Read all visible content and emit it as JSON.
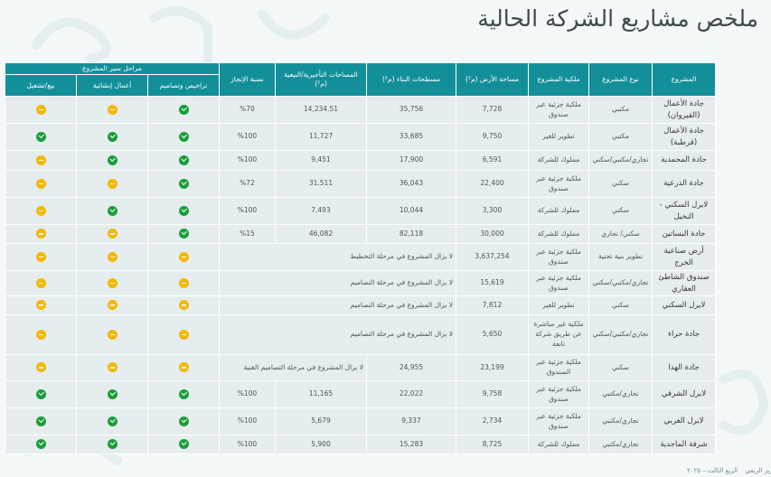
{
  "title": "ملخص مشاريع الشركة الحالية",
  "colors": {
    "header": "#138f9a",
    "cell": "#e6edef",
    "done": "#1a9e3a",
    "pending": "#f5b800"
  },
  "icons": {
    "done": "check-circle-icon",
    "pending": "minus-circle-icon"
  },
  "table": {
    "headers": {
      "project": "المشروع",
      "type": "نوع المشروع",
      "ownership": "ملكية المشروع",
      "land_area": "مساحة الأرض (م²)",
      "built_area": "مسطحات البناء (م²)",
      "leasable_area": "المساحات التأجيرية/البيعية (م²)",
      "completion": "نسبة الإنجاز",
      "stages_group": "مراحل سير المشروع",
      "stage_licensing": "تراخيص وتصاميم",
      "stage_construction": "أعمال إنشائية",
      "stage_sale": "بيع/تشغيل"
    },
    "rows": [
      {
        "project": "جادة الأعمال (القيروان)",
        "type": "مكتبي",
        "ownership": "ملكية جزئية عبر صندوق",
        "land_area": "7,728",
        "built_area": "35,756",
        "leasable_area": "14,234.51",
        "completion": "%70",
        "licensing": "done",
        "construction": "pending",
        "sale": "pending"
      },
      {
        "project": "جادة الأعمال (قرطبة)",
        "type": "مكتبي",
        "ownership": "تطوير للغير",
        "land_area": "9,750",
        "built_area": "33,685",
        "leasable_area": "11,727",
        "completion": "%100",
        "licensing": "done",
        "construction": "done",
        "sale": "done"
      },
      {
        "project": "جادة المحمدية",
        "type": "تجاري/مكتبي/سكني",
        "ownership": "مملوك للشركة",
        "land_area": "6,591",
        "built_area": "17,900",
        "leasable_area": "9,451",
        "completion": "%100",
        "licensing": "done",
        "construction": "done",
        "sale": "pending"
      },
      {
        "project": "جادة الدرعية",
        "type": "سكني",
        "ownership": "ملكية جزئية عبر صندوق",
        "land_area": "22,400",
        "built_area": "36,043",
        "leasable_area": "31.511",
        "completion": "%72",
        "licensing": "done",
        "construction": "pending",
        "sale": "pending"
      },
      {
        "project": "لايرل السكني - النخيل",
        "type": "سكني",
        "ownership": "مملوك للشركة",
        "land_area": "3,300",
        "built_area": "10,044",
        "leasable_area": "7,493",
        "completion": "%100",
        "licensing": "done",
        "construction": "done",
        "sale": "pending"
      },
      {
        "project": "جادة البساتين",
        "type": "سكني/ تجاري",
        "ownership": "مملوك للشركة",
        "land_area": "30,000",
        "built_area": "82,118",
        "leasable_area": "46,082",
        "completion": "%15",
        "licensing": "done",
        "construction": "pending",
        "sale": "pending"
      },
      {
        "project": "أرض صناعية الخرج",
        "type": "تطوير بنية تحتية",
        "ownership": "ملكية جزئية عبر صندوق",
        "land_area": "3,637,254",
        "message": "لا يزال المشروع في مرحلة التخطيط",
        "licensing": "pending",
        "construction": "pending",
        "sale": "pending"
      },
      {
        "project": "صندوق الشاطئ العقاري",
        "type": "تجاري/مكتبي/سكني",
        "ownership": "ملكية جزئية عبر صندوق",
        "land_area": "15,619",
        "message": "لا يزال المشروع في مرحلة التصاميم",
        "licensing": "pending",
        "construction": "pending",
        "sale": "pending"
      },
      {
        "project": "لايرل السكني",
        "type": "سكني",
        "ownership": "تطوير للغير",
        "land_area": "7,812",
        "message": "لا يزال المشروع في مرحلة التصاميم",
        "licensing": "pending",
        "construction": "pending",
        "sale": "pending"
      },
      {
        "project": "جادة حراء",
        "type": "تجاري/مكتبي/سكني",
        "ownership": "ملكية غير مباشرة عن طريق شركة تابعة",
        "land_area": "5,650",
        "message": "لا يزال المشروع في مرحلة التصاميم",
        "licensing": "pending",
        "construction": "pending",
        "sale": "pending"
      },
      {
        "project": "جادة الهدا",
        "type": "سكني",
        "ownership": "ملكية جزئية عبر الصندوق",
        "land_area": "23,199",
        "built_area": "24,955",
        "message": "لا يزال المشروع في مرحلة التصاميم الفنية",
        "licensing": "pending",
        "construction": "pending",
        "sale": "pending"
      },
      {
        "project": "لايرل الشرقي",
        "type": "تجاري/مكتبي",
        "ownership": "ملكية جزئية عبر صندوق",
        "land_area": "9,758",
        "built_area": "22,022",
        "leasable_area": "11,165",
        "completion": "%100",
        "licensing": "done",
        "construction": "done",
        "sale": "done"
      },
      {
        "project": "لايرل الغربي",
        "type": "تجاري/مكتبي",
        "ownership": "ملكية جزئية عبر صندوق",
        "land_area": "2,734",
        "built_area": "9,337",
        "leasable_area": "5,679",
        "completion": "%100",
        "licensing": "done",
        "construction": "done",
        "sale": "done"
      },
      {
        "project": "شرفة الماجدية",
        "type": "تجاري/مكتبي",
        "ownership": "مملوك للشركة",
        "land_area": "8,725",
        "built_area": "15,283",
        "leasable_area": "5,900",
        "completion": "%100",
        "licensing": "done",
        "construction": "done",
        "sale": "done"
      }
    ]
  },
  "footer": {
    "report": "التقرير الربعي",
    "period": "الربع الثالث – ٢٠٢٥"
  }
}
